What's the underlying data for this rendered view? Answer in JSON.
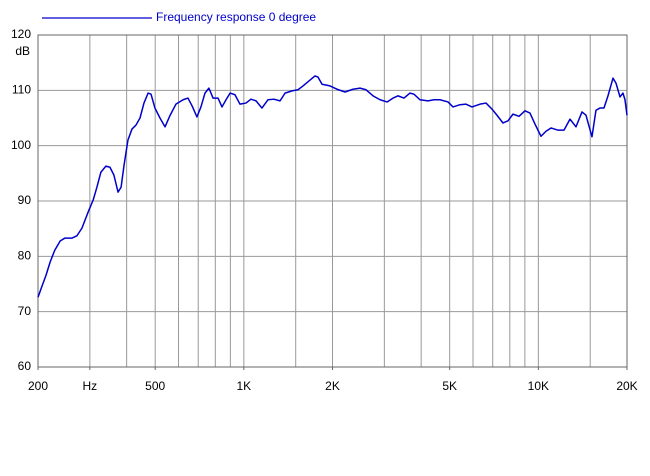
{
  "chart_data": {
    "type": "line",
    "ylabel": "dB",
    "xscale": "log",
    "xlim": [
      200,
      20000
    ],
    "ylim": [
      60,
      120
    ],
    "yticks": [
      60,
      70,
      80,
      90,
      100,
      110,
      120
    ],
    "xticks": [
      200,
      {
        "value": 300,
        "label": "Hz"
      },
      500,
      {
        "value": 1000,
        "label": "1K"
      },
      {
        "value": 2000,
        "label": "2K"
      },
      {
        "value": 5000,
        "label": "5K"
      },
      {
        "value": 10000,
        "label": "10K"
      },
      {
        "value": 20000,
        "label": "20K"
      }
    ],
    "xgrid": [
      300,
      400,
      500,
      600,
      700,
      800,
      900,
      1000,
      1500,
      2000,
      3000,
      4000,
      5000,
      6000,
      7000,
      8000,
      9000,
      10000,
      15000
    ],
    "grid": true,
    "legend": "top-left",
    "series": [
      {
        "name": "Frequency response 0 degree",
        "color": "#0000cc",
        "x": [
          200,
          206,
          213,
          220,
          228,
          238,
          247,
          261,
          271,
          282,
          296,
          308,
          317,
          327,
          340,
          351,
          362,
          374,
          383,
          392,
          404,
          417,
          430,
          444,
          458,
          473,
          484,
          499,
          519,
          540,
          562,
          588,
          622,
          646,
          667,
          693,
          715,
          738,
          761,
          786,
          817,
          843,
          870,
          898,
          933,
          970,
          1017,
          1057,
          1100,
          1152,
          1208,
          1265,
          1327,
          1380,
          1457,
          1527,
          1588,
          1664,
          1744,
          1785,
          1843,
          1961,
          2072,
          2205,
          2347,
          2480,
          2599,
          2746,
          2901,
          3064,
          3211,
          3339,
          3498,
          3666,
          3782,
          3963,
          4220,
          4423,
          4634,
          4934,
          5131,
          5420,
          5680,
          5953,
          6338,
          6642,
          6960,
          7238,
          7585,
          7887,
          8203,
          8597,
          9008,
          9367,
          9741,
          10209,
          10617,
          11040,
          11662,
          12220,
          12807,
          13420,
          14066,
          14514,
          15210,
          15692,
          16190,
          16704,
          17236,
          17924,
          18350,
          18935,
          19380,
          19690,
          20000
        ],
        "values": [
          72.6,
          74.5,
          76.6,
          79,
          81.1,
          82.8,
          83.3,
          83.3,
          83.7,
          85.1,
          88,
          90.2,
          92.5,
          95.2,
          96.3,
          96.1,
          94.7,
          91.6,
          92.5,
          96.5,
          101,
          103,
          103.7,
          105,
          107.7,
          109.5,
          109.3,
          106.8,
          105,
          103.4,
          105.5,
          107.5,
          108.3,
          108.6,
          107.2,
          105.2,
          107,
          109.5,
          110.4,
          108.6,
          108.6,
          107,
          108.3,
          109.5,
          109.2,
          107.5,
          107.7,
          108.4,
          108.1,
          106.8,
          108.3,
          108.4,
          108.1,
          109.5,
          109.9,
          110.1,
          110.8,
          111.7,
          112.6,
          112.4,
          111.1,
          110.8,
          110.2,
          109.7,
          110.2,
          110.4,
          110.1,
          109,
          108.3,
          107.9,
          108.6,
          109,
          108.6,
          109.5,
          109.3,
          108.3,
          108.1,
          108.3,
          108.3,
          107.9,
          107,
          107.4,
          107.5,
          107,
          107.5,
          107.7,
          106.6,
          105.5,
          104.1,
          104.5,
          105.7,
          105.3,
          106.3,
          105.9,
          103.9,
          101.7,
          102.6,
          103.2,
          102.8,
          102.8,
          104.8,
          103.4,
          106.1,
          105.5,
          101.6,
          106.4,
          106.8,
          106.8,
          109,
          112.2,
          111.3,
          108.8,
          109.5,
          108.3,
          105.5
        ]
      }
    ]
  }
}
